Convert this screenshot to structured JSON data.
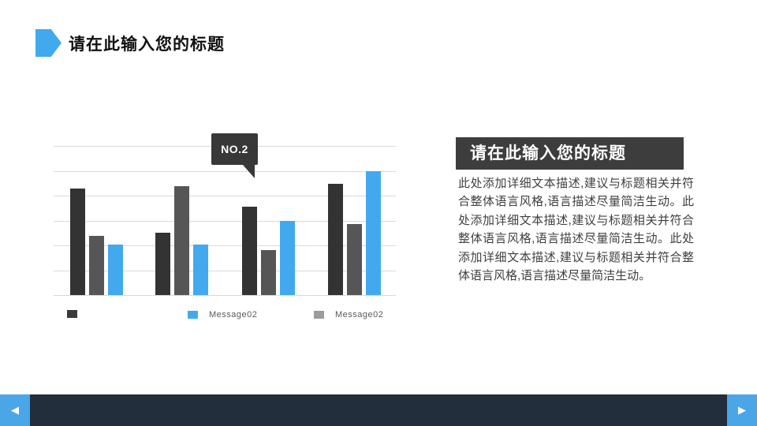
{
  "slide": {
    "title": "请在此输入您的标题",
    "accent_color": "#41A9EE",
    "background_color": "#FFFFFF"
  },
  "chart_data": {
    "type": "bar",
    "title": "",
    "categories": [
      "",
      "",
      "",
      ""
    ],
    "series": [
      {
        "name": "",
        "color": "#333333",
        "values": [
          4.3,
          2.5,
          3.55,
          4.5
        ]
      },
      {
        "name": "Message02",
        "color": "#565656",
        "values": [
          2.4,
          4.4,
          1.8,
          2.85
        ]
      },
      {
        "name": "Message02",
        "color": "#42A9EF",
        "values": [
          2.05,
          2.05,
          3.0,
          5.0
        ]
      }
    ],
    "legend": [
      {
        "label": "",
        "color": "#3A3A3A"
      },
      {
        "label": "Message02",
        "color": "#41AAEF"
      },
      {
        "label": "Message02",
        "color": "#9C9C9C"
      }
    ],
    "ylim": [
      0,
      7
    ],
    "grid": "horizontal",
    "gridline_color": "#D9D9D9",
    "x_axis_labels_shown": false,
    "y_axis_labels_shown": false,
    "legend_position": "bottom",
    "annotation": {
      "label": "NO.2",
      "points_to": "group-3 dark bar"
    }
  },
  "panel": {
    "title": "请在此输入您的标题",
    "body": "此处添加详细文本描述,建议与标题相关并符合整体语言风格,语言描述尽量简洁生动。此处添加详细文本描述,建议与标题相关并符合整体语言风格,语言描述尽量简洁生动。此处添加详细文本描述,建议与标题相关并符合整体语言风格,语言描述尽量简洁生动。"
  },
  "navbar": {
    "bar_color": "#232E3C",
    "button_color": "#4BA6E8",
    "prev_icon": "◀",
    "next_icon": "▶"
  }
}
